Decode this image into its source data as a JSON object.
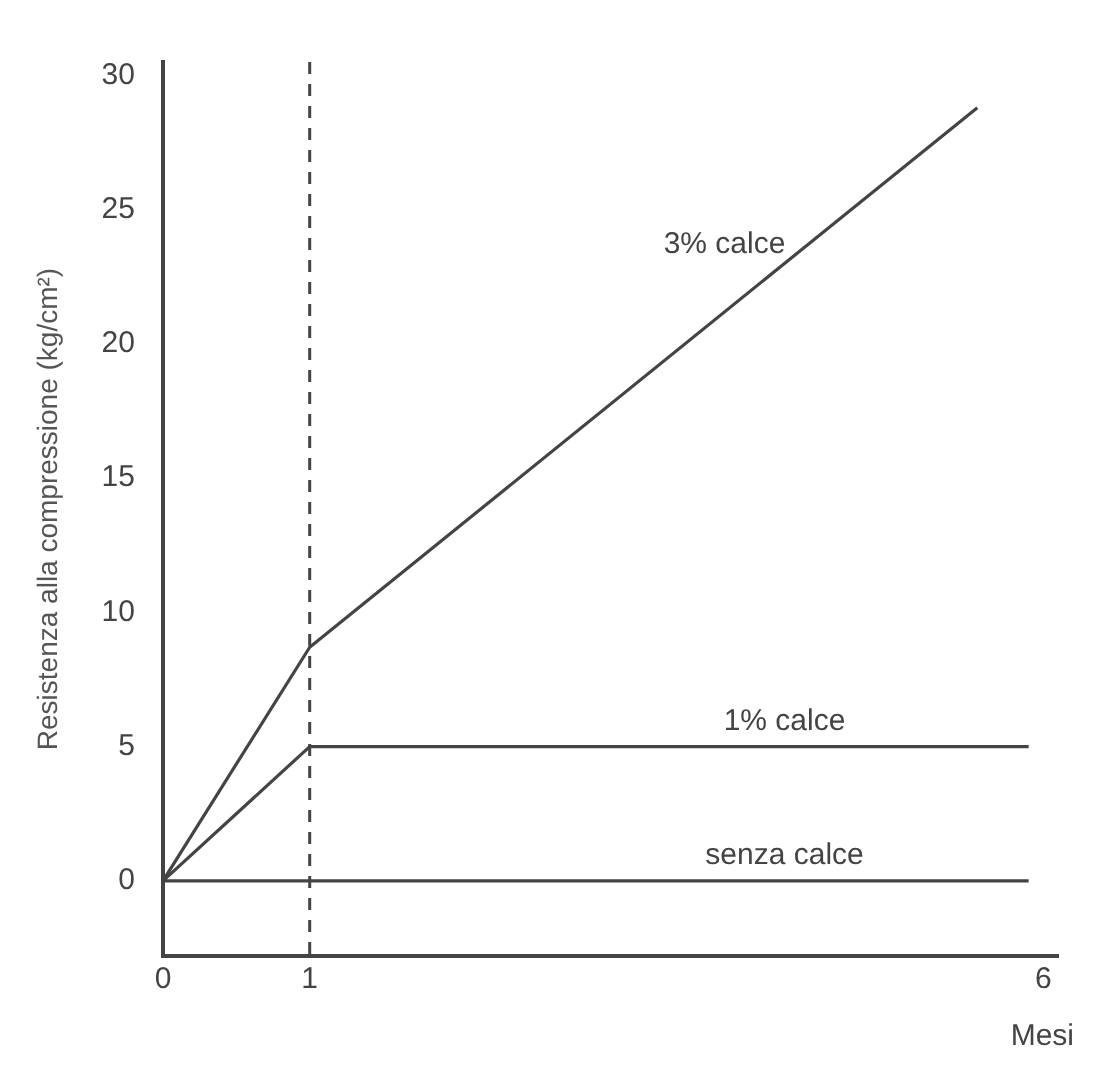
{
  "chart_data": {
    "type": "line",
    "xlabel": "Mesi",
    "ylabel": "Resistenza alla compressione (kg/cm²)",
    "series": [
      {
        "name": "3% calce",
        "color": "#444444",
        "x": [
          0,
          1,
          5.55
        ],
        "values": [
          0,
          8.7,
          28.8
        ]
      },
      {
        "name": "1% calce",
        "color": "#444444",
        "x": [
          0,
          1,
          5.9
        ],
        "values": [
          0,
          5,
          5
        ]
      },
      {
        "name": "senza calce",
        "color": "#444444",
        "x": [
          0,
          5.9
        ],
        "values": [
          0,
          0
        ]
      }
    ],
    "xlim": [
      0,
      6.1
    ],
    "xticks": [
      0,
      1,
      6
    ],
    "ylim": [
      -2.8,
      30.5
    ],
    "yticks": [
      0,
      5,
      10,
      15,
      20,
      25,
      30
    ],
    "ref_lines": [
      {
        "axis": "x",
        "value": 1,
        "color": "#444444",
        "line_style": "dashed"
      }
    ],
    "grid": false,
    "legend": false,
    "marker": "none",
    "line_style": "solid"
  }
}
